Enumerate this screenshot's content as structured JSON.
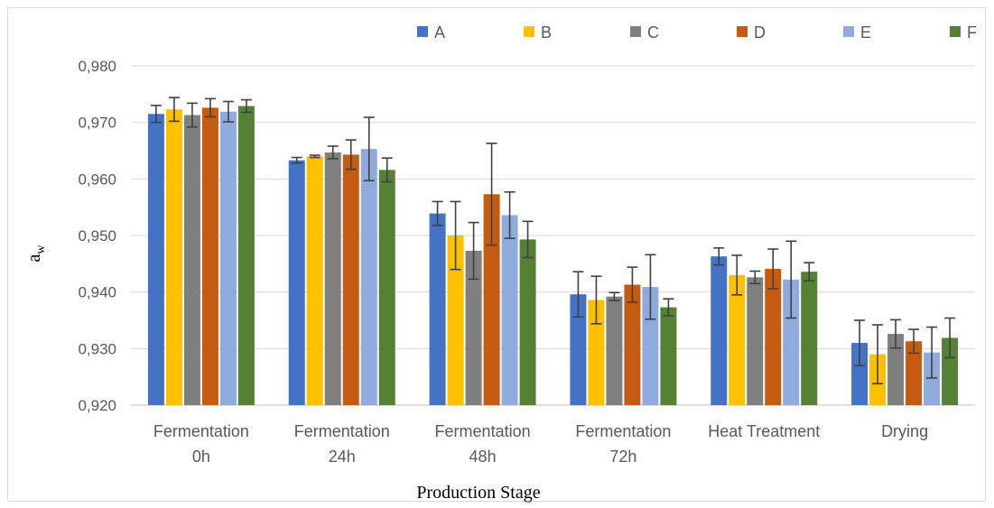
{
  "chart_data": {
    "type": "bar",
    "title": "",
    "xlabel": "Production Stage",
    "ylabel_main": "a",
    "ylabel_sub": "w",
    "ylim": [
      0.92,
      0.98
    ],
    "yticks": [
      "0,920",
      "0,930",
      "0,940",
      "0,950",
      "0,960",
      "0,970",
      "0,980"
    ],
    "ytick_values": [
      0.92,
      0.93,
      0.94,
      0.95,
      0.96,
      0.97,
      0.98
    ],
    "grid": true,
    "legend_position": "top",
    "categories": [
      [
        "Fermentation",
        "0h"
      ],
      [
        "Fermentation",
        "24h"
      ],
      [
        "Fermentation",
        "48h"
      ],
      [
        "Fermentation",
        "72h"
      ],
      [
        "Heat Treatment"
      ],
      [
        "Drying"
      ]
    ],
    "series": [
      {
        "name": "A",
        "color": "#4472C4",
        "values": [
          0.9715,
          0.9633,
          0.9539,
          0.9396,
          0.9463,
          0.931
        ],
        "errors": [
          0.0015,
          0.0005,
          0.0021,
          0.004,
          0.0015,
          0.004
        ]
      },
      {
        "name": "B",
        "color": "#FFC000",
        "values": [
          0.9723,
          0.964,
          0.95,
          0.9386,
          0.943,
          0.929
        ],
        "errors": [
          0.0021,
          0.0002,
          0.006,
          0.0042,
          0.0035,
          0.0052
        ]
      },
      {
        "name": "C",
        "color": "#7F7F7F",
        "values": [
          0.9713,
          0.9647,
          0.9473,
          0.9392,
          0.9426,
          0.9326
        ],
        "errors": [
          0.0021,
          0.0011,
          0.005,
          0.0007,
          0.0011,
          0.0025
        ]
      },
      {
        "name": "D",
        "color": "#C55A11",
        "values": [
          0.9726,
          0.9643,
          0.9573,
          0.9413,
          0.9441,
          0.9313
        ],
        "errors": [
          0.0016,
          0.0026,
          0.009,
          0.0031,
          0.0035,
          0.0021
        ]
      },
      {
        "name": "E",
        "color": "#8FAADC",
        "values": [
          0.9719,
          0.9653,
          0.9536,
          0.9409,
          0.9422,
          0.9293
        ],
        "errors": [
          0.0018,
          0.0056,
          0.0041,
          0.0057,
          0.0068,
          0.0045
        ]
      },
      {
        "name": "F",
        "color": "#548235",
        "values": [
          0.9729,
          0.9616,
          0.9493,
          0.9373,
          0.9436,
          0.9319
        ],
        "errors": [
          0.0011,
          0.0021,
          0.0032,
          0.0015,
          0.0016,
          0.0035
        ]
      }
    ]
  }
}
